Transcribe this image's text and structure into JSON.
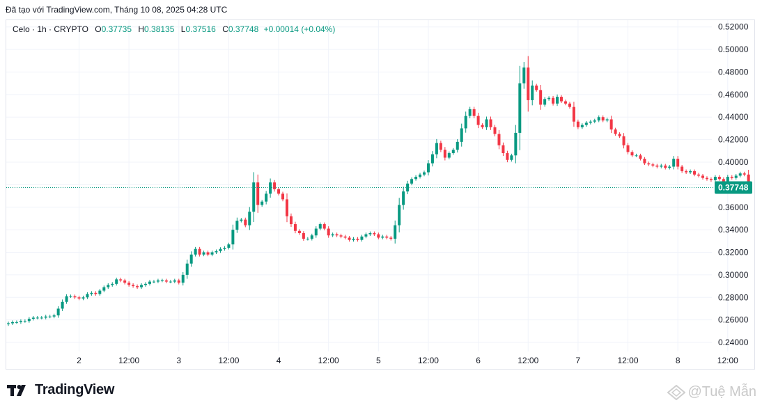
{
  "header": {
    "note": "Đã tạo với TradingView.com, Tháng 10 08, 2025 04:28 UTC"
  },
  "legend": {
    "symbol": "Celo · 1h · CRYPTO",
    "open_label": "O",
    "open": "0.37735",
    "high_label": "H",
    "high": "0.38135",
    "low_label": "L",
    "low": "0.37516",
    "close_label": "C",
    "close": "0.37748",
    "change": "+0.00014 (+0.04%)"
  },
  "price_badge": "0.37748",
  "brand": {
    "name": "TradingView"
  },
  "watermark": {
    "text": "@Tuệ Mẫn"
  },
  "colors": {
    "up": "#089981",
    "down": "#f23645",
    "grid": "#f0f3fa",
    "axis_text": "#131722"
  },
  "chart_data": {
    "type": "candlestick",
    "title": "Celo · 1h · CRYPTO",
    "ylim": [
      0.232,
      0.526
    ],
    "y_ticks": [
      0.24,
      0.26,
      0.28,
      0.3,
      0.32,
      0.34,
      0.36,
      0.38,
      0.4,
      0.42,
      0.44,
      0.46,
      0.48,
      0.5,
      0.52
    ],
    "y_tick_labels": [
      "0.24000",
      "0.26000",
      "0.28000",
      "0.30000",
      "0.32000",
      "0.34000",
      "0.36000",
      "0.38000",
      "0.40000",
      "0.42000",
      "0.44000",
      "0.46000",
      "0.48000",
      "0.50000",
      "0.52000"
    ],
    "x_tick_labels": [
      {
        "label": "2",
        "bar": 17
      },
      {
        "label": "12:00",
        "bar": 29
      },
      {
        "label": "3",
        "bar": 41
      },
      {
        "label": "12:00",
        "bar": 53
      },
      {
        "label": "4",
        "bar": 65
      },
      {
        "label": "12:00",
        "bar": 77
      },
      {
        "label": "5",
        "bar": 89
      },
      {
        "label": "12:00",
        "bar": 101
      },
      {
        "label": "6",
        "bar": 113
      },
      {
        "label": "12:00",
        "bar": 125
      },
      {
        "label": "7",
        "bar": 137
      },
      {
        "label": "12:00",
        "bar": 149
      },
      {
        "label": "8",
        "bar": 161
      },
      {
        "label": "12:00",
        "bar": 173
      }
    ],
    "last_price": 0.37748,
    "closes": [
      0.257,
      0.258,
      0.258,
      0.259,
      0.259,
      0.261,
      0.262,
      0.262,
      0.262,
      0.263,
      0.263,
      0.264,
      0.27,
      0.276,
      0.281,
      0.281,
      0.28,
      0.279,
      0.28,
      0.283,
      0.284,
      0.283,
      0.286,
      0.289,
      0.291,
      0.292,
      0.296,
      0.295,
      0.293,
      0.291,
      0.29,
      0.289,
      0.291,
      0.292,
      0.294,
      0.294,
      0.295,
      0.295,
      0.294,
      0.294,
      0.295,
      0.293,
      0.3,
      0.31,
      0.318,
      0.323,
      0.318,
      0.32,
      0.318,
      0.32,
      0.321,
      0.323,
      0.324,
      0.327,
      0.34,
      0.348,
      0.349,
      0.344,
      0.356,
      0.382,
      0.362,
      0.365,
      0.372,
      0.382,
      0.376,
      0.372,
      0.367,
      0.352,
      0.345,
      0.339,
      0.337,
      0.332,
      0.332,
      0.335,
      0.341,
      0.345,
      0.341,
      0.335,
      0.336,
      0.335,
      0.334,
      0.333,
      0.331,
      0.332,
      0.331,
      0.334,
      0.336,
      0.337,
      0.336,
      0.333,
      0.334,
      0.333,
      0.332,
      0.344,
      0.362,
      0.374,
      0.381,
      0.385,
      0.387,
      0.389,
      0.391,
      0.399,
      0.407,
      0.417,
      0.411,
      0.404,
      0.408,
      0.411,
      0.418,
      0.43,
      0.441,
      0.447,
      0.441,
      0.433,
      0.431,
      0.438,
      0.431,
      0.425,
      0.415,
      0.408,
      0.402,
      0.406,
      0.426,
      0.47,
      0.484,
      0.455,
      0.468,
      0.464,
      0.451,
      0.456,
      0.457,
      0.452,
      0.458,
      0.454,
      0.452,
      0.449,
      0.436,
      0.431,
      0.433,
      0.435,
      0.436,
      0.437,
      0.44,
      0.437,
      0.438,
      0.429,
      0.425,
      0.423,
      0.415,
      0.409,
      0.406,
      0.406,
      0.403,
      0.399,
      0.398,
      0.397,
      0.396,
      0.397,
      0.395,
      0.396,
      0.403,
      0.396,
      0.392,
      0.391,
      0.392,
      0.389,
      0.388,
      0.386,
      0.385,
      0.384,
      0.387,
      0.385,
      0.382,
      0.387,
      0.386,
      0.388,
      0.39,
      0.389,
      0.377
    ]
  }
}
